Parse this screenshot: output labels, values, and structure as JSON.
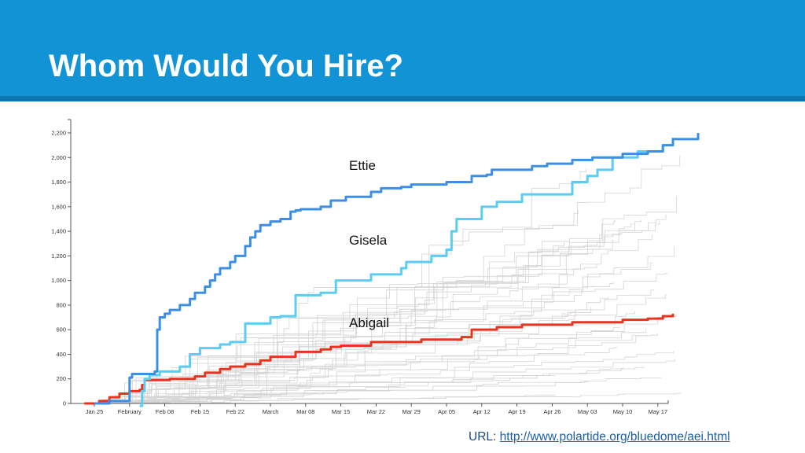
{
  "slide": {
    "title": "Whom Would You Hire?",
    "url_label": "URL:",
    "url_link": "http://www.polartide.org/bluedome/aei.html"
  },
  "colors": {
    "header": "#1193d6",
    "header_band": "#0d76b0",
    "ettie": "#3d8fe6",
    "gisela": "#5ccdf2",
    "abigail": "#e8341f",
    "background_lines": "#d4d4d4"
  },
  "chart_data": {
    "type": "line",
    "title": "",
    "xlabel": "",
    "ylabel": "",
    "ylim": [
      0,
      2300
    ],
    "yticks": [
      0,
      200,
      400,
      600,
      800,
      1000,
      1200,
      1400,
      1600,
      1800,
      2000,
      2200
    ],
    "ytick_labels": [
      "0",
      "200",
      "400",
      "600",
      "800",
      "1,000",
      "1,200",
      "1,400",
      "1,600",
      "1,800",
      "2,000",
      "2,200"
    ],
    "xticks": [
      "Jan 25",
      "February",
      "Feb 08",
      "Feb 15",
      "Feb 22",
      "March",
      "Mar 08",
      "Mar 15",
      "Mar 22",
      "Mar 29",
      "Apr 05",
      "Apr 12",
      "Apr 19",
      "Apr 26",
      "May 03",
      "May 10",
      "May 17"
    ],
    "grid": false,
    "legend": "inline labels",
    "x_unit": "days since Jan 20",
    "series": [
      {
        "name": "Ettie",
        "label": "Ettie",
        "x": [
          5,
          8,
          11,
          12,
          12.5,
          17,
          17.5,
          18,
          19,
          20,
          22,
          24,
          25,
          27,
          28,
          29,
          30,
          32,
          33,
          35,
          36,
          37,
          38,
          40,
          42,
          44,
          45,
          46,
          50,
          52,
          55,
          60,
          62,
          66,
          68,
          75,
          80,
          83,
          84,
          92,
          95,
          100,
          104,
          110,
          115,
          118,
          120,
          125
        ],
        "values": [
          0,
          20,
          20,
          210,
          240,
          260,
          600,
          700,
          730,
          760,
          800,
          850,
          900,
          950,
          1000,
          1050,
          1100,
          1150,
          1200,
          1280,
          1350,
          1400,
          1450,
          1480,
          1500,
          1560,
          1570,
          1580,
          1600,
          1650,
          1680,
          1720,
          1750,
          1760,
          1780,
          1800,
          1850,
          1860,
          1900,
          1930,
          1950,
          1980,
          2000,
          2030,
          2050,
          2100,
          2150,
          2200
        ]
      },
      {
        "name": "Gisela",
        "label": "Gisela",
        "x": [
          14,
          14.5,
          15,
          16,
          18,
          22,
          24,
          26,
          30,
          32,
          35,
          40,
          42,
          45,
          50,
          53,
          60,
          66,
          67,
          72,
          75,
          76,
          77,
          82,
          85,
          90,
          100,
          103,
          105,
          108,
          113,
          118,
          120
        ],
        "values": [
          -50,
          100,
          200,
          230,
          260,
          300,
          400,
          450,
          480,
          500,
          650,
          700,
          710,
          880,
          900,
          1000,
          1050,
          1100,
          1150,
          1200,
          1250,
          1400,
          1500,
          1600,
          1640,
          1700,
          1800,
          1850,
          1900,
          2000,
          2050,
          2100,
          2160
        ]
      },
      {
        "name": "Abigail",
        "label": "Abigail",
        "x": [
          3,
          6,
          8,
          10,
          12,
          14,
          14.5,
          15,
          20,
          25,
          27,
          30,
          32,
          35,
          38,
          40,
          45,
          50,
          52,
          54,
          60,
          70,
          78,
          80,
          85,
          90,
          100,
          110,
          115,
          118,
          120
        ],
        "values": [
          0,
          20,
          50,
          80,
          100,
          110,
          150,
          190,
          200,
          220,
          250,
          280,
          300,
          320,
          350,
          380,
          420,
          440,
          460,
          470,
          500,
          520,
          540,
          600,
          620,
          640,
          660,
          680,
          690,
          710,
          730
        ]
      }
    ],
    "background_series_count": 40,
    "background_series_note": "many thin light-gray step lines representing other candidates"
  },
  "axis": {
    "ytick_labels": [
      "0",
      "200",
      "400",
      "600",
      "800",
      "1,000",
      "1,200",
      "1,400",
      "1,600",
      "1,800",
      "2,000",
      "2,200"
    ],
    "xtick_labels": [
      "Jan 25",
      "February",
      "Feb 08",
      "Feb 15",
      "Feb 22",
      "March",
      "Mar 08",
      "Mar 15",
      "Mar 22",
      "Mar 29",
      "Apr 05",
      "Apr 12",
      "Apr 19",
      "Apr 26",
      "May 03",
      "May 10",
      "May 17"
    ]
  },
  "labels": {
    "ettie": "Ettie",
    "gisela": "Gisela",
    "abigail": "Abigail"
  }
}
